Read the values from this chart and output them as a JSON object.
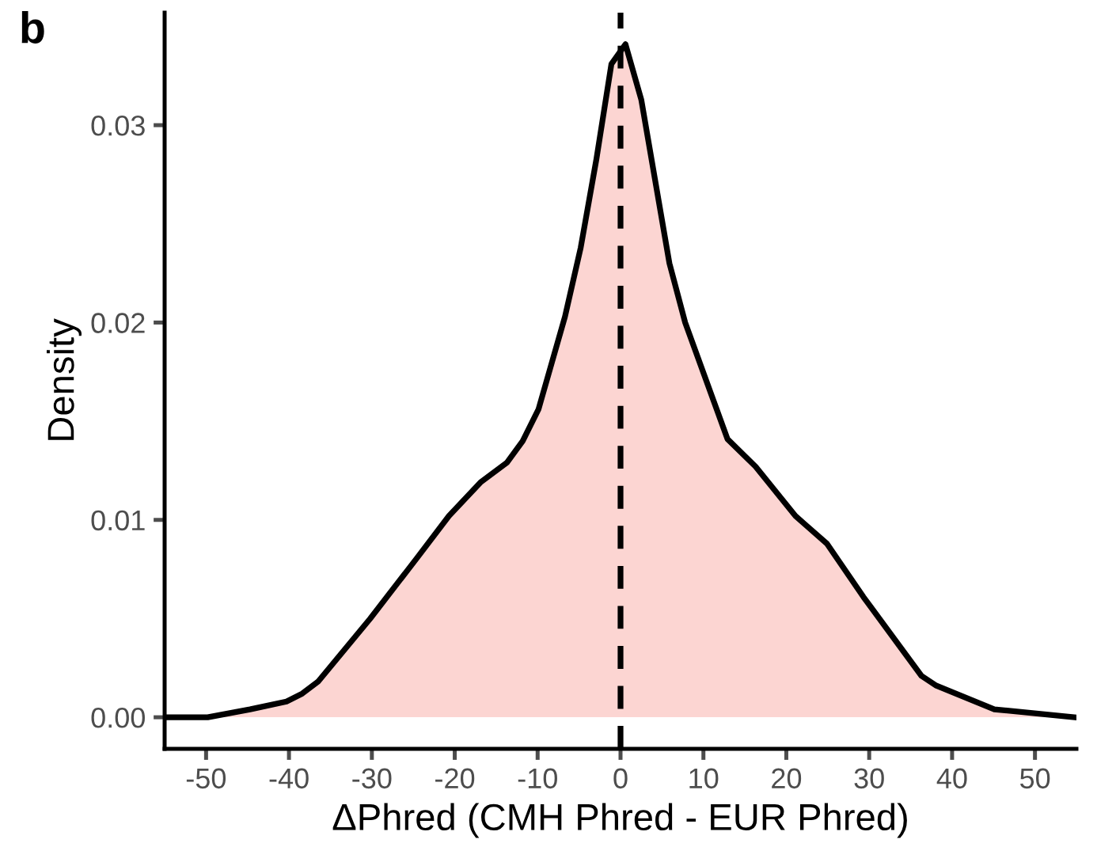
{
  "chart_data": {
    "type": "area",
    "title": "b",
    "xlabel": "ΔPhred (CMH Phred - EUR Phred)",
    "ylabel": "Density",
    "series": [
      {
        "color": "#fcd5d2",
        "x": [
          -54.6,
          -49.8,
          -44.7,
          -40.3,
          -38.4,
          -36.5,
          -30.2,
          -24.5,
          -20.7,
          -16.9,
          -13.7,
          -11.8,
          -9.9,
          -6.7,
          -4.8,
          -2.9,
          -1.1,
          0.6,
          2.5,
          5.9,
          7.8,
          12.9,
          16.3,
          21.1,
          24.9,
          29.3,
          36.3,
          38.1,
          45.1,
          54.7
        ],
        "values": [
          0,
          0,
          0.0004,
          0.0008,
          0.0012,
          0.0018,
          0.005,
          0.0081,
          0.0102,
          0.0119,
          0.0129,
          0.014,
          0.0156,
          0.0203,
          0.0238,
          0.0283,
          0.0331,
          0.0341,
          0.0313,
          0.023,
          0.02,
          0.0141,
          0.0127,
          0.0102,
          0.0088,
          0.0061,
          0.0021,
          0.0016,
          0.0004,
          0
        ]
      }
    ],
    "xlim": [
      -55,
      55
    ],
    "xticks": [
      -50,
      -40,
      -30,
      -20,
      -10,
      0,
      10,
      20,
      30,
      40,
      50
    ],
    "ylim": [
      -0.0016,
      0.0357
    ],
    "yticks": [
      {
        "value": 0,
        "label": "0.00"
      },
      {
        "value": 0.01,
        "label": "0.01"
      },
      {
        "value": 0.02,
        "label": "0.02"
      },
      {
        "value": 0.03,
        "label": "0.03"
      }
    ],
    "ref_lines": [
      {
        "axis": "x",
        "value": 0,
        "color": "#000000",
        "line_style": "dashed"
      }
    ],
    "grid": false
  }
}
